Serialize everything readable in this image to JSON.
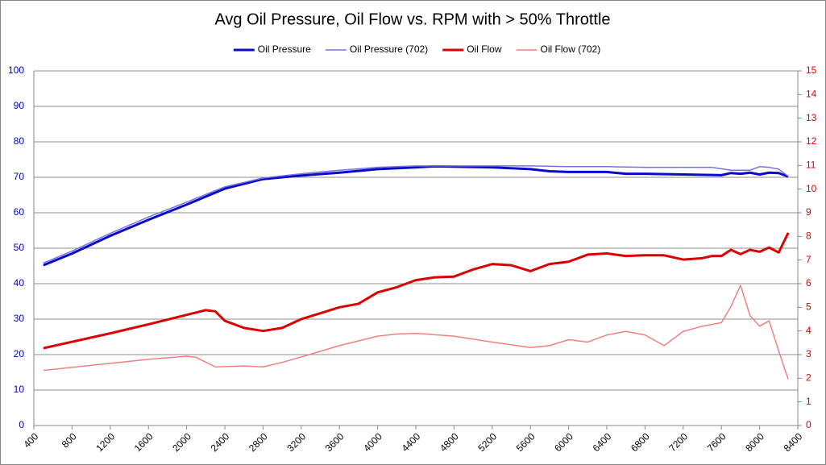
{
  "chart_data": {
    "type": "line",
    "title": "Avg Oil Pressure, Oil Flow vs. RPM with > 50% Throttle",
    "xlim": [
      400,
      8400
    ],
    "xticks": [
      400,
      800,
      1200,
      1600,
      2000,
      2400,
      2800,
      3200,
      3600,
      4000,
      4400,
      4800,
      5200,
      5600,
      6000,
      6400,
      6800,
      7200,
      7600,
      8000,
      8400
    ],
    "ylim": [
      0,
      100
    ],
    "yticks": [
      0,
      10,
      20,
      30,
      40,
      50,
      60,
      70,
      80,
      90,
      100
    ],
    "y2lim": [
      0,
      15
    ],
    "y2ticks": [
      0,
      1,
      2,
      3,
      4,
      5,
      6,
      7,
      8,
      9,
      10,
      11,
      12,
      13,
      14,
      15
    ],
    "grid": true,
    "legend": "top",
    "series": [
      {
        "name": "Oil Pressure",
        "color": "#0a0ac8",
        "width": 3,
        "axis": "y",
        "x": [
          500,
          800,
          1200,
          1600,
          2000,
          2400,
          2800,
          3200,
          3600,
          4000,
          4400,
          4600,
          5200,
          5600,
          5800,
          6000,
          6400,
          6600,
          6800,
          7200,
          7600,
          7700,
          7800,
          7900,
          8000,
          8100,
          8200,
          8300
        ],
        "values": [
          45.2,
          48.5,
          53.5,
          58,
          62.3,
          66.8,
          69.5,
          70.5,
          71.3,
          72.3,
          72.8,
          73.1,
          72.8,
          72.3,
          71.7,
          71.5,
          71.5,
          71,
          71,
          70.8,
          70.6,
          71.2,
          71,
          71.3,
          70.8,
          71.3,
          71.2,
          70.2
        ]
      },
      {
        "name": "Oil Pressure (702)",
        "color": "#7373e6",
        "width": 1.5,
        "axis": "y",
        "x": [
          500,
          800,
          1200,
          1600,
          2000,
          2400,
          2800,
          3200,
          3600,
          4000,
          4400,
          4800,
          5200,
          5600,
          6000,
          6400,
          6800,
          7200,
          7500,
          7700,
          7900,
          8000,
          8100,
          8200,
          8300
        ],
        "values": [
          45.8,
          49.2,
          54.2,
          58.8,
          63,
          67.3,
          69.8,
          71,
          72,
          72.8,
          73.2,
          73.2,
          73.2,
          73.2,
          73,
          73,
          72.8,
          72.8,
          72.8,
          72,
          72,
          73,
          72.8,
          72.3,
          70.3
        ]
      },
      {
        "name": "Oil Flow",
        "color": "#dd0000",
        "width": 3,
        "axis": "y2",
        "x": [
          500,
          1200,
          1600,
          2000,
          2200,
          2300,
          2400,
          2600,
          2800,
          3000,
          3200,
          3600,
          3800,
          4000,
          4200,
          4400,
          4600,
          4800,
          5000,
          5200,
          5400,
          5600,
          5800,
          6000,
          6200,
          6400,
          6600,
          6800,
          7000,
          7200,
          7400,
          7500,
          7600,
          7700,
          7800,
          7900,
          8000,
          8100,
          8200,
          8300
        ],
        "values": [
          3.27,
          3.9,
          4.28,
          4.68,
          4.88,
          4.83,
          4.43,
          4.13,
          4.0,
          4.13,
          4.5,
          5.0,
          5.15,
          5.63,
          5.85,
          6.15,
          6.27,
          6.3,
          6.6,
          6.83,
          6.78,
          6.53,
          6.83,
          6.93,
          7.23,
          7.28,
          7.17,
          7.2,
          7.2,
          7.02,
          7.08,
          7.17,
          7.17,
          7.43,
          7.25,
          7.43,
          7.35,
          7.53,
          7.32,
          8.15
        ]
      },
      {
        "name": "Oil Flow (702)",
        "color": "#f08080",
        "width": 1.5,
        "axis": "y2",
        "x": [
          500,
          1200,
          1600,
          2000,
          2100,
          2300,
          2600,
          2800,
          3000,
          3200,
          3600,
          4000,
          4200,
          4400,
          4800,
          5200,
          5600,
          5800,
          6000,
          6200,
          6400,
          6600,
          6800,
          7000,
          7200,
          7400,
          7600,
          7700,
          7800,
          7900,
          8000,
          8100,
          8200,
          8300
        ],
        "values": [
          2.33,
          2.63,
          2.8,
          2.93,
          2.88,
          2.48,
          2.52,
          2.48,
          2.67,
          2.9,
          3.38,
          3.78,
          3.87,
          3.9,
          3.78,
          3.53,
          3.3,
          3.38,
          3.63,
          3.53,
          3.83,
          3.98,
          3.83,
          3.38,
          3.98,
          4.2,
          4.35,
          5.03,
          5.93,
          4.65,
          4.2,
          4.43,
          3.15,
          1.95
        ]
      }
    ]
  }
}
